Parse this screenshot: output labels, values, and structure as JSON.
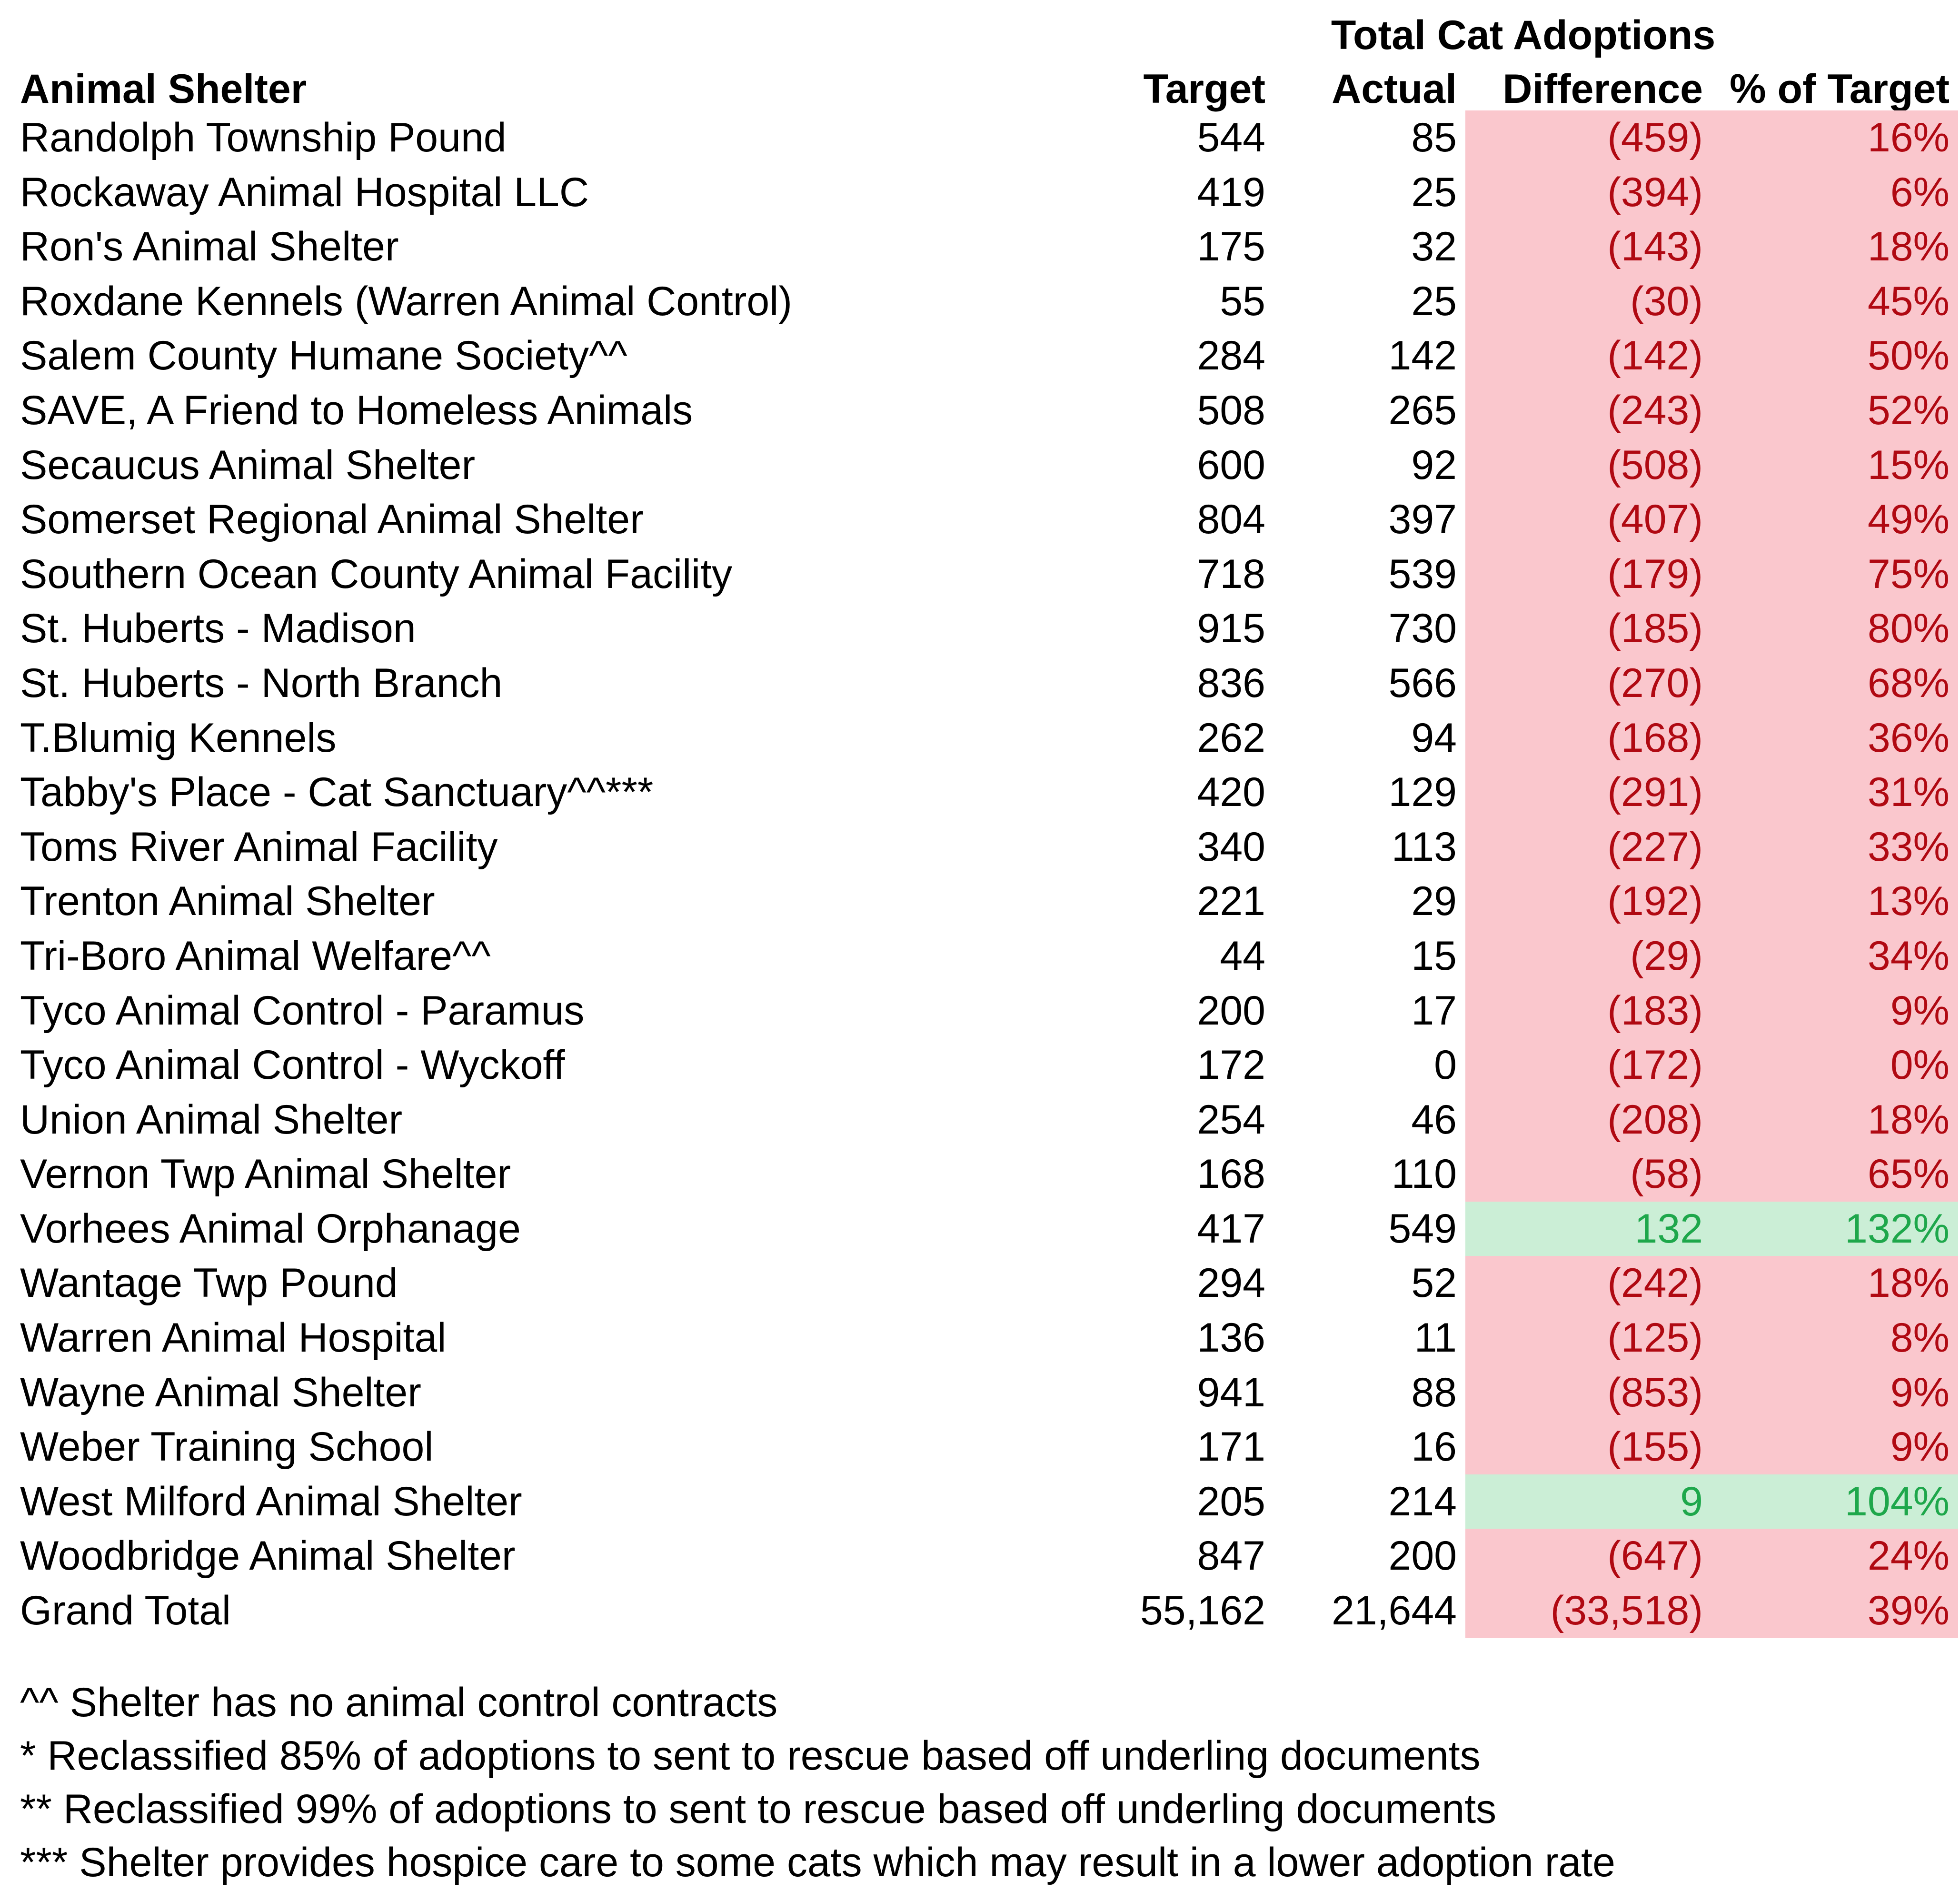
{
  "title": "Total Cat Adoptions",
  "columns": {
    "shelter": "Animal Shelter",
    "target": "Target",
    "actual": "Actual",
    "difference": "Difference",
    "pct": "% of Target"
  },
  "rows": [
    {
      "name": "Randolph Township Pound",
      "target": "544",
      "actual": "85",
      "difference": "(459)",
      "pct": "16%",
      "status": "neg"
    },
    {
      "name": "Rockaway Animal Hospital LLC",
      "target": "419",
      "actual": "25",
      "difference": "(394)",
      "pct": "6%",
      "status": "neg"
    },
    {
      "name": "Ron's Animal Shelter",
      "target": "175",
      "actual": "32",
      "difference": "(143)",
      "pct": "18%",
      "status": "neg"
    },
    {
      "name": "Roxdane Kennels (Warren Animal Control)",
      "target": "55",
      "actual": "25",
      "difference": "(30)",
      "pct": "45%",
      "status": "neg"
    },
    {
      "name": "Salem County Humane Society^^",
      "target": "284",
      "actual": "142",
      "difference": "(142)",
      "pct": "50%",
      "status": "neg"
    },
    {
      "name": "SAVE, A Friend to Homeless Animals",
      "target": "508",
      "actual": "265",
      "difference": "(243)",
      "pct": "52%",
      "status": "neg"
    },
    {
      "name": "Secaucus Animal Shelter",
      "target": "600",
      "actual": "92",
      "difference": "(508)",
      "pct": "15%",
      "status": "neg"
    },
    {
      "name": "Somerset Regional Animal Shelter",
      "target": "804",
      "actual": "397",
      "difference": "(407)",
      "pct": "49%",
      "status": "neg"
    },
    {
      "name": "Southern Ocean County Animal Facility",
      "target": "718",
      "actual": "539",
      "difference": "(179)",
      "pct": "75%",
      "status": "neg"
    },
    {
      "name": "St. Huberts - Madison",
      "target": "915",
      "actual": "730",
      "difference": "(185)",
      "pct": "80%",
      "status": "neg"
    },
    {
      "name": "St. Huberts - North Branch",
      "target": "836",
      "actual": "566",
      "difference": "(270)",
      "pct": "68%",
      "status": "neg"
    },
    {
      "name": "T.Blumig Kennels",
      "target": "262",
      "actual": "94",
      "difference": "(168)",
      "pct": "36%",
      "status": "neg"
    },
    {
      "name": "Tabby's Place - Cat Sanctuary^^***",
      "target": "420",
      "actual": "129",
      "difference": "(291)",
      "pct": "31%",
      "status": "neg"
    },
    {
      "name": "Toms River Animal Facility",
      "target": "340",
      "actual": "113",
      "difference": "(227)",
      "pct": "33%",
      "status": "neg"
    },
    {
      "name": "Trenton Animal Shelter",
      "target": "221",
      "actual": "29",
      "difference": "(192)",
      "pct": "13%",
      "status": "neg"
    },
    {
      "name": "Tri-Boro Animal Welfare^^",
      "target": "44",
      "actual": "15",
      "difference": "(29)",
      "pct": "34%",
      "status": "neg"
    },
    {
      "name": "Tyco Animal Control - Paramus",
      "target": "200",
      "actual": "17",
      "difference": "(183)",
      "pct": "9%",
      "status": "neg"
    },
    {
      "name": "Tyco Animal Control - Wyckoff",
      "target": "172",
      "actual": "0",
      "difference": "(172)",
      "pct": "0%",
      "status": "neg"
    },
    {
      "name": "Union Animal Shelter",
      "target": "254",
      "actual": "46",
      "difference": "(208)",
      "pct": "18%",
      "status": "neg"
    },
    {
      "name": "Vernon Twp Animal Shelter",
      "target": "168",
      "actual": "110",
      "difference": "(58)",
      "pct": "65%",
      "status": "neg"
    },
    {
      "name": "Vorhees Animal Orphanage",
      "target": "417",
      "actual": "549",
      "difference": "132",
      "pct": "132%",
      "status": "pos"
    },
    {
      "name": "Wantage Twp Pound",
      "target": "294",
      "actual": "52",
      "difference": "(242)",
      "pct": "18%",
      "status": "neg"
    },
    {
      "name": "Warren Animal Hospital",
      "target": "136",
      "actual": "11",
      "difference": "(125)",
      "pct": "8%",
      "status": "neg"
    },
    {
      "name": "Wayne Animal Shelter",
      "target": "941",
      "actual": "88",
      "difference": "(853)",
      "pct": "9%",
      "status": "neg"
    },
    {
      "name": "Weber Training School",
      "target": "171",
      "actual": "16",
      "difference": "(155)",
      "pct": "9%",
      "status": "neg"
    },
    {
      "name": "West Milford Animal Shelter",
      "target": "205",
      "actual": "214",
      "difference": "9",
      "pct": "104%",
      "status": "pos"
    },
    {
      "name": "Woodbridge Animal Shelter",
      "target": "847",
      "actual": "200",
      "difference": "(647)",
      "pct": "24%",
      "status": "neg"
    },
    {
      "name": "Grand Total",
      "target": "55,162",
      "actual": "21,644",
      "difference": "(33,518)",
      "pct": "39%",
      "status": "neg"
    }
  ],
  "footnotes": [
    "^^ Shelter has no animal control contracts",
    "* Reclassified 85% of adoptions to sent to rescue based off underling documents",
    "** Reclassified 99% of adoptions to sent to rescue based off underling documents",
    "*** Shelter provides hospice care to some cats which may result in a lower adoption rate"
  ],
  "colors": {
    "negative_bg": "#FAC7CD",
    "negative_text": "#B00912",
    "positive_bg": "#CBEED6",
    "positive_text": "#1EA74B"
  }
}
